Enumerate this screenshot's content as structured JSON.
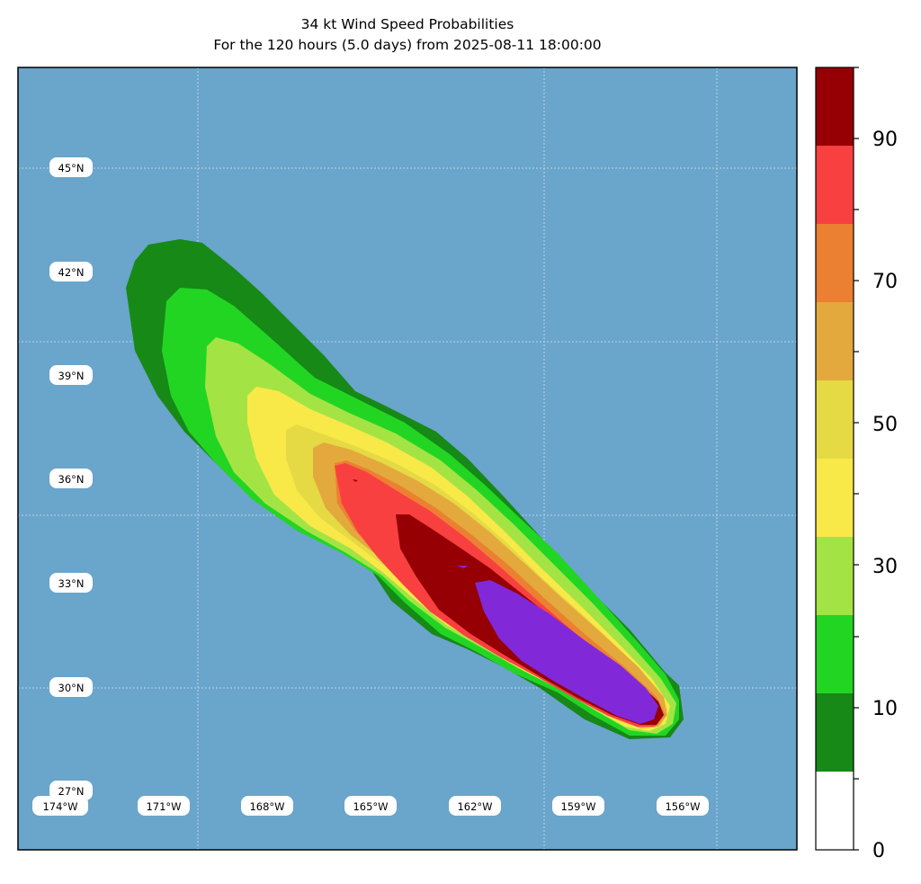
{
  "title_line1": "34 kt Wind Speed Probabilities",
  "title_line2": "For the 120 hours (5.0 days) from 2025-08-11 18:00:00",
  "colors": {
    "ocean": "#6aa5cb",
    "bands": [
      "#ffffff",
      "#168916",
      "#23d523",
      "#a3e444",
      "#f9e948",
      "#e5da44",
      "#e3a93c",
      "#ec8032",
      "#f94040",
      "#960004",
      "#8128d9"
    ]
  },
  "lat_labels": [
    "45°N",
    "42°N",
    "39°N",
    "36°N",
    "33°N",
    "30°N",
    "27°N"
  ],
  "lon_labels": [
    "174°W",
    "171°W",
    "168°W",
    "165°W",
    "162°W",
    "159°W",
    "156°W"
  ],
  "colorbar": {
    "ticks": [
      "0",
      "10",
      "30",
      "50",
      "70",
      "90"
    ],
    "levels": [
      0,
      10,
      20,
      30,
      40,
      50,
      60,
      70,
      80,
      90,
      100
    ]
  },
  "chart_data": {
    "type": "heatmap",
    "title": "34 kt Wind Speed Probabilities\nFor the 120 hours (5.0 days) from 2025-08-11 18:00:00",
    "units": "%",
    "contour_levels": [
      0,
      10,
      20,
      30,
      40,
      50,
      60,
      70,
      80,
      90,
      100
    ],
    "grid": true,
    "colorbar": "right",
    "storm_track_direction": "toward northwest"
  }
}
